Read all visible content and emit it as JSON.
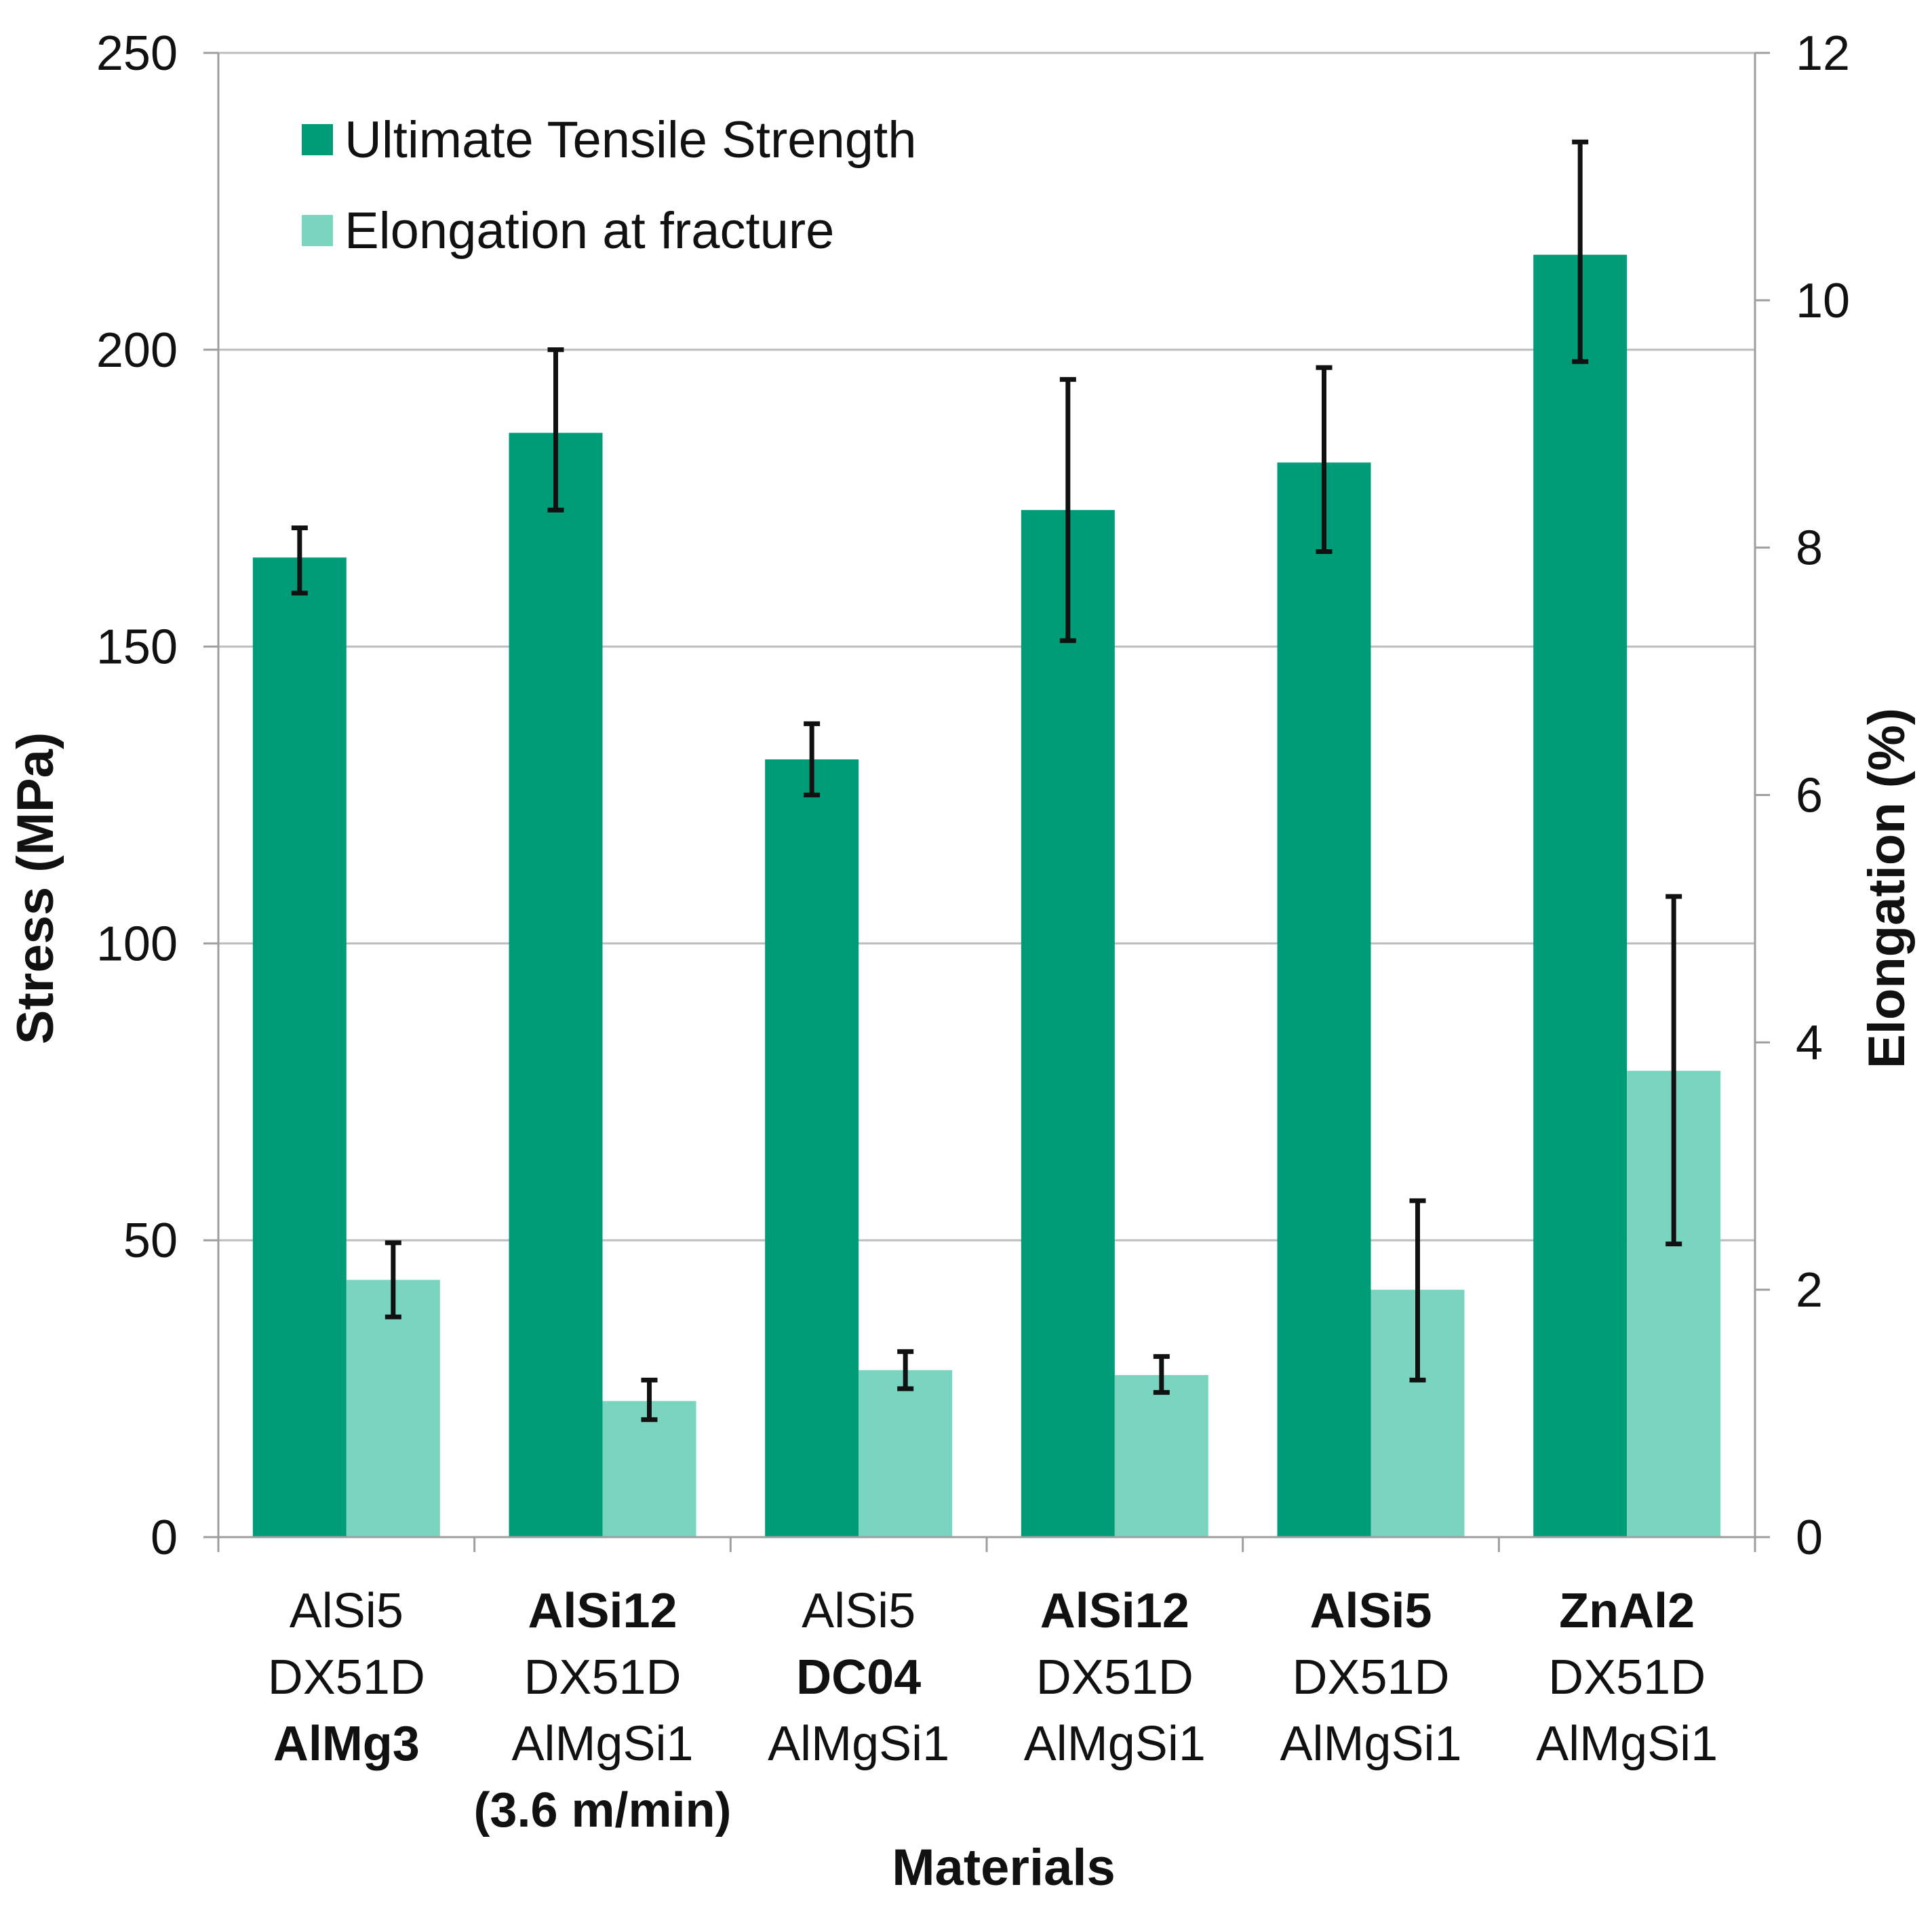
{
  "chart_data": {
    "type": "bar",
    "title": "",
    "xlabel": "Materials",
    "ylabel": "Stress (MPa)",
    "y2label": "Elongation (%)",
    "ylim": [
      0,
      250
    ],
    "y2lim": [
      0,
      12
    ],
    "yticks": [
      0,
      50,
      100,
      150,
      200,
      250
    ],
    "y2ticks": [
      0,
      2,
      4,
      6,
      8,
      10,
      12
    ],
    "grid": true,
    "legend_position": "top-left",
    "colors": {
      "uts": "#009b77",
      "elongation": "#79d5c0",
      "error_bar": "#111111",
      "grid": "#bdbdbd",
      "axis": "#9e9e9e"
    },
    "categories": [
      {
        "lines": [
          "AlSi5",
          "DX51D",
          "AlMg3"
        ],
        "bold": [
          2
        ]
      },
      {
        "lines": [
          "AlSi12",
          "DX51D",
          "AlMgSi1",
          "(3.6 m/min)"
        ],
        "bold": [
          0,
          3
        ]
      },
      {
        "lines": [
          "AlSi5",
          "DC04",
          "AlMgSi1"
        ],
        "bold": [
          1
        ]
      },
      {
        "lines": [
          "AlSi12",
          "DX51D",
          "AlMgSi1"
        ],
        "bold": [
          0
        ]
      },
      {
        "lines": [
          "AlSi5",
          "DX51D",
          "AlMgSi1"
        ],
        "bold": [
          0
        ]
      },
      {
        "lines": [
          "ZnAl2",
          "DX51D",
          "AlMgSi1"
        ],
        "bold": [
          0
        ]
      }
    ],
    "series": [
      {
        "name": "Ultimate Tensile Strength",
        "axis": "left",
        "values": [
          165,
          186,
          131,
          173,
          181,
          216
        ],
        "error_low": [
          159,
          173,
          125,
          151,
          166,
          198
        ],
        "error_high": [
          170,
          200,
          137,
          195,
          197,
          235
        ]
      },
      {
        "name": "Elongation at fracture",
        "axis": "right",
        "values": [
          2.08,
          1.1,
          1.35,
          1.31,
          2.0,
          3.77
        ],
        "error_low": [
          1.78,
          0.95,
          1.2,
          1.17,
          1.27,
          2.37
        ],
        "error_high": [
          2.38,
          1.27,
          1.5,
          1.46,
          2.72,
          5.18
        ]
      }
    ]
  }
}
